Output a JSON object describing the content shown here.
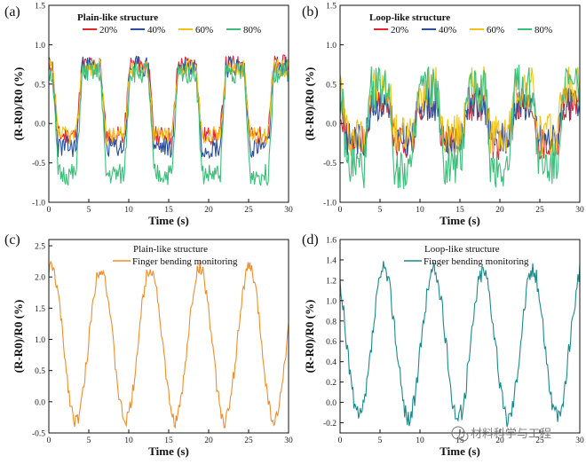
{
  "watermark": "材料科学与工程",
  "wechat_icon": "wechat-logo-icon",
  "colors": {
    "20%": "#e3262c",
    "40%": "#2b4f9e",
    "60%": "#f2c21b",
    "80%": "#3cbf7a",
    "orange": "#ef8e2c",
    "teal": "#1c8a8a"
  },
  "chart_data": [
    {
      "panel": "(a)",
      "type": "line",
      "title": "Plain-like structure",
      "xlabel": "Time (s)",
      "ylabel": "(R-R0)/R0 (%)",
      "xlim": [
        0,
        30
      ],
      "ylim": [
        -1.0,
        1.5
      ],
      "xticks": [
        "0",
        "5",
        "10",
        "15",
        "20",
        "25",
        "30"
      ],
      "yticks": [
        "-1.0",
        "-0.5",
        "0.0",
        "0.5",
        "1.0",
        "1.5"
      ],
      "legend_position": "top",
      "series": [
        {
          "name": "20%",
          "color_key": "20%",
          "amplitude": [
            -0.15,
            0.75
          ],
          "noise": 0.12,
          "seed": 11
        },
        {
          "name": "40%",
          "color_key": "40%",
          "amplitude": [
            -0.3,
            0.72
          ],
          "noise": 0.14,
          "seed": 23
        },
        {
          "name": "60%",
          "color_key": "60%",
          "amplitude": [
            -0.15,
            0.7
          ],
          "noise": 0.12,
          "seed": 37
        },
        {
          "name": "80%",
          "color_key": "80%",
          "amplitude": [
            -0.65,
            0.65
          ],
          "noise": 0.14,
          "seed": 51
        }
      ],
      "period_s": 6.0,
      "phase_s": 3.8
    },
    {
      "panel": "(b)",
      "type": "line",
      "title": "Loop-like structure",
      "xlabel": "Time (s)",
      "ylabel": "(R-R0)/R0 (%)",
      "xlim": [
        0,
        30
      ],
      "ylim": [
        -1.0,
        1.5
      ],
      "xticks": [
        "0",
        "5",
        "10",
        "15",
        "20",
        "25",
        "30"
      ],
      "yticks": [
        "-1.0",
        "-0.5",
        "0.0",
        "0.5",
        "1.0",
        "1.5"
      ],
      "legend_position": "top",
      "series": [
        {
          "name": "20%",
          "color_key": "20%",
          "amplitude": [
            -0.25,
            0.25
          ],
          "noise": 0.22,
          "seed": 71
        },
        {
          "name": "40%",
          "color_key": "40%",
          "amplitude": [
            -0.2,
            0.25
          ],
          "noise": 0.22,
          "seed": 83
        },
        {
          "name": "60%",
          "color_key": "60%",
          "amplitude": [
            -0.15,
            0.45
          ],
          "noise": 0.28,
          "seed": 97
        },
        {
          "name": "80%",
          "color_key": "80%",
          "amplitude": [
            -0.55,
            0.45
          ],
          "noise": 0.3,
          "seed": 109
        }
      ],
      "period_s": 6.0,
      "phase_s": 3.5
    },
    {
      "panel": "(c)",
      "type": "line",
      "title": "Plain-like structure",
      "xlabel": "Time (s)",
      "ylabel": "(R-R0)/R0 (%)",
      "xlim": [
        0,
        30
      ],
      "ylim": [
        -0.5,
        2.6
      ],
      "xticks": [
        "0",
        "5",
        "10",
        "15",
        "20",
        "25",
        "30"
      ],
      "yticks": [
        "-0.5",
        "0.0",
        "0.5",
        "1.0",
        "1.5",
        "2.0",
        "2.5"
      ],
      "legend_position": "top-right",
      "series": [
        {
          "name": "Finger bending monitoring",
          "color_key": "orange",
          "amplitude": [
            -0.3,
            2.15
          ],
          "noise": 0.12,
          "seed": 131
        }
      ],
      "period_s": 6.2,
      "phase_s": 6.5
    },
    {
      "panel": "(d)",
      "type": "line",
      "title": "Loop-like structure",
      "xlabel": "Time (s)",
      "ylabel": "(R-R0)/R0 (%)",
      "xlim": [
        0,
        30
      ],
      "ylim": [
        -0.3,
        1.6
      ],
      "xticks": [
        "0",
        "5",
        "10",
        "15",
        "20",
        "25",
        "30"
      ],
      "yticks": [
        "-0.2",
        "0.0",
        "0.2",
        "0.4",
        "0.6",
        "0.8",
        "1.0",
        "1.2",
        "1.4",
        "1.6"
      ],
      "legend_position": "top-right",
      "series": [
        {
          "name": "Finger bending monitoring",
          "color_key": "teal",
          "amplitude": [
            -0.15,
            1.3
          ],
          "noise": 0.1,
          "seed": 157
        }
      ],
      "period_s": 6.2,
      "phase_s": 5.5
    }
  ]
}
